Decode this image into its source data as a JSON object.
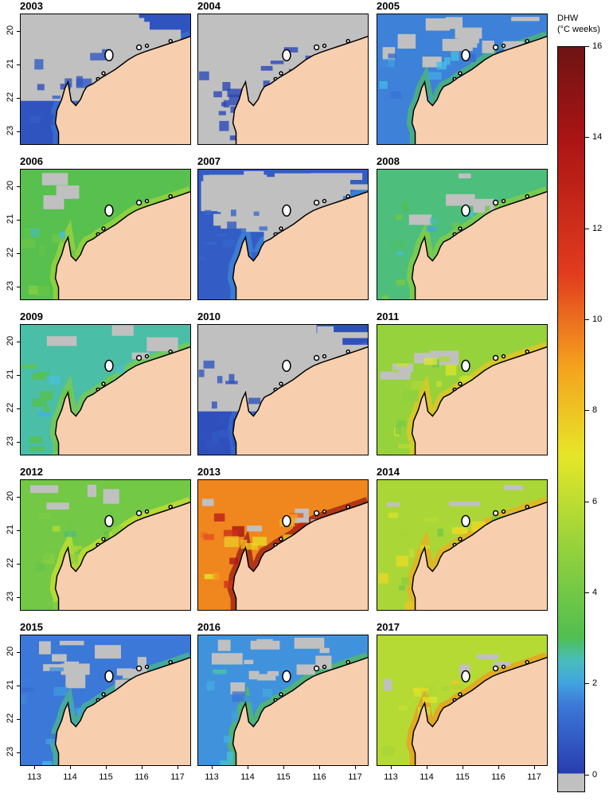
{
  "panels": [
    {
      "year": "2003",
      "level": 0.6
    },
    {
      "year": "2004",
      "level": 0.2
    },
    {
      "year": "2005",
      "level": 1.6
    },
    {
      "year": "2006",
      "level": 3.2
    },
    {
      "year": "2007",
      "level": 0.8
    },
    {
      "year": "2008",
      "level": 2.8
    },
    {
      "year": "2009",
      "level": 2.6
    },
    {
      "year": "2010",
      "level": 0.5
    },
    {
      "year": "2011",
      "level": 5.0
    },
    {
      "year": "2012",
      "level": 4.0
    },
    {
      "year": "2013",
      "level": 9.5
    },
    {
      "year": "2014",
      "level": 5.5
    },
    {
      "year": "2015",
      "level": 1.5
    },
    {
      "year": "2016",
      "level": 1.8
    },
    {
      "year": "2017",
      "level": 5.8
    }
  ],
  "y_axis": {
    "ticks": [
      "20",
      "21",
      "22",
      "23"
    ]
  },
  "x_axis": {
    "ticks": [
      "113",
      "114",
      "115",
      "116",
      "117"
    ]
  },
  "legend": {
    "title_line1": "DHW",
    "title_line2": "(°C weeks)",
    "ticks": [
      "16",
      "14",
      "12",
      "10",
      "8",
      "6",
      "4",
      "2",
      "0"
    ],
    "range": [
      0,
      16
    ]
  },
  "colors": {
    "land": "#f8cfae",
    "no_data": "#c0c0c0",
    "coast": "#000000"
  }
}
